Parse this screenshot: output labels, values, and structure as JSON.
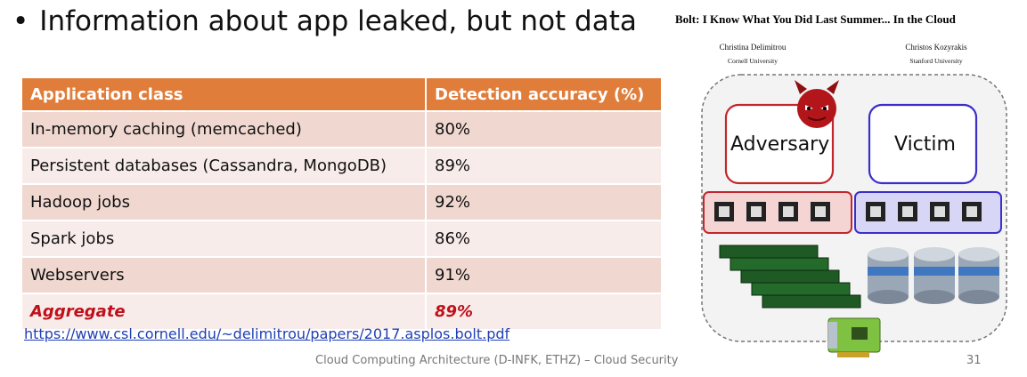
{
  "heading": {
    "bullet": "•",
    "text": "Information about app leaked, but not data"
  },
  "table": {
    "headers": [
      "Application class",
      "Detection accuracy (%)"
    ],
    "rows": [
      {
        "app": "In-memory caching (memcached)",
        "accuracy": "80%"
      },
      {
        "app": "Persistent databases (Cassandra, MongoDB)",
        "accuracy": "89%"
      },
      {
        "app": "Hadoop jobs",
        "accuracy": "92%"
      },
      {
        "app": "Spark jobs",
        "accuracy": "86%"
      },
      {
        "app": "Webservers",
        "accuracy": "91%"
      }
    ],
    "aggregate": {
      "app": "Aggregate",
      "accuracy": "89%"
    }
  },
  "link": "https://www.csl.cornell.edu/~delimitrou/papers/2017.asplos.bolt.pdf",
  "footer": "Cloud Computing Architecture (D-INFK, ETHZ) – Cloud Security",
  "page_number": "31",
  "paper": {
    "title": "Bolt: I Know What You Did Last Summer... In the Cloud",
    "authors": [
      {
        "name": "Christina Delimitrou",
        "affiliation": "Cornell University"
      },
      {
        "name": "Christos Kozyrakis",
        "affiliation": "Stanford University"
      }
    ]
  },
  "figure": {
    "adversary_label": "Adversary",
    "victim_label": "Victim",
    "colors": {
      "adversary": "#c0282d",
      "victim": "#3b2fc9",
      "accent": "#e07d3a",
      "link": "#1f3fb6"
    },
    "icons": [
      "devil-icon",
      "cpu-chip-icon",
      "memory-module-icon",
      "disk-stack-icon",
      "network-card-icon"
    ]
  }
}
